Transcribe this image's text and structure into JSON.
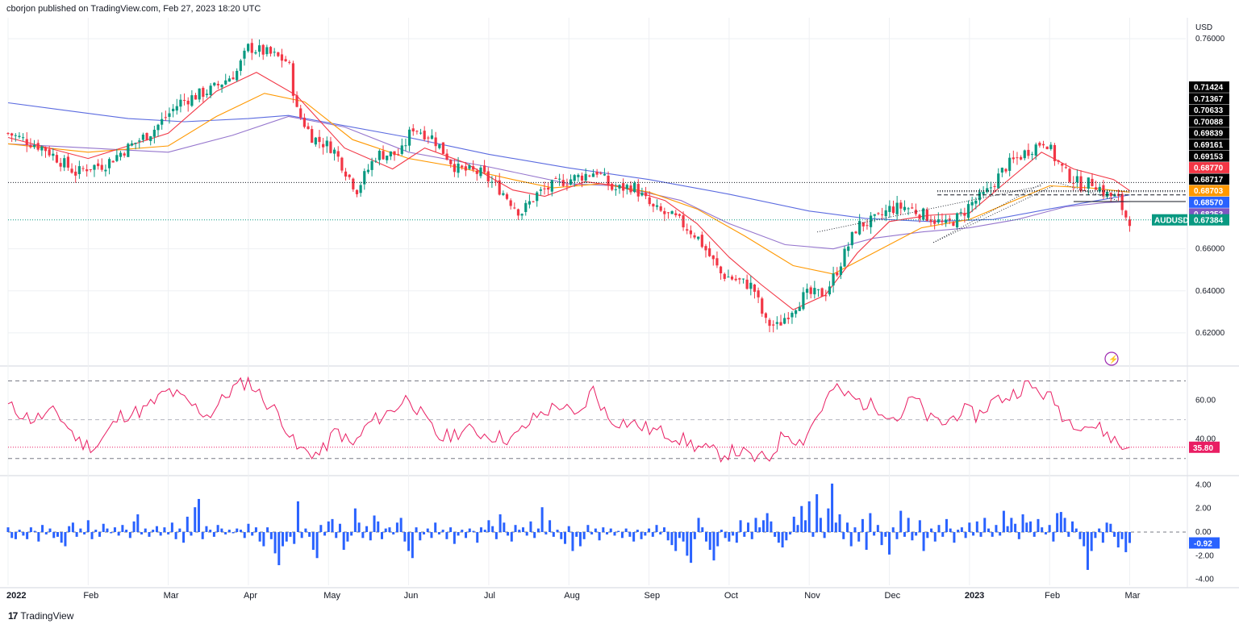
{
  "header": {
    "published": "cborjon published on TradingView.com, Feb 27, 2023 18:20 UTC"
  },
  "footer": {
    "brand": "TradingView",
    "logo_text": "17"
  },
  "colors": {
    "up": "#089981",
    "down": "#f23645",
    "ema_fast": "#f23645",
    "ema_mid": "#ff9800",
    "sma_100": "#9575cd",
    "sma_200": "#5b6be0",
    "rsi": "#e91e63",
    "hist": "#2962ff",
    "grid": "#eef0f3",
    "axis_text": "#131722"
  },
  "chart_data": [
    {
      "type": "candlestick",
      "symbol": "AUDUSD",
      "currency": "USD",
      "timeframe": "1D",
      "ylim": [
        0.605,
        0.77
      ],
      "y_ticks": [
        "0.76000",
        "0.66000",
        "0.64000",
        "0.62000"
      ],
      "x_labels": [
        "2022",
        "Feb",
        "Mar",
        "Apr",
        "May",
        "Jun",
        "Jul",
        "Aug",
        "Sep",
        "Oct",
        "Nov",
        "Dec",
        "2023",
        "Feb",
        "Mar"
      ],
      "x_label_months": [
        0,
        1,
        2,
        3,
        4,
        5,
        6,
        7,
        8,
        9,
        10,
        11,
        12,
        13,
        14
      ],
      "close_path": [
        [
          0,
          0.715
        ],
        [
          0.45,
          0.708
        ],
        [
          0.85,
          0.696
        ],
        [
          1.0,
          0.699
        ],
        [
          1.2,
          0.7
        ],
        [
          1.45,
          0.707
        ],
        [
          1.8,
          0.716
        ],
        [
          2.15,
          0.73
        ],
        [
          2.55,
          0.736
        ],
        [
          2.85,
          0.744
        ],
        [
          3.0,
          0.756
        ],
        [
          3.25,
          0.753
        ],
        [
          3.5,
          0.749
        ],
        [
          3.6,
          0.726
        ],
        [
          3.8,
          0.713
        ],
        [
          4.05,
          0.708
        ],
        [
          4.35,
          0.688
        ],
        [
          4.6,
          0.705
        ],
        [
          4.9,
          0.705
        ],
        [
          5.05,
          0.718
        ],
        [
          5.3,
          0.713
        ],
        [
          5.6,
          0.698
        ],
        [
          5.9,
          0.696
        ],
        [
          6.15,
          0.688
        ],
        [
          6.4,
          0.677
        ],
        [
          6.6,
          0.686
        ],
        [
          6.9,
          0.692
        ],
        [
          7.1,
          0.694
        ],
        [
          7.35,
          0.697
        ],
        [
          7.55,
          0.688
        ],
        [
          7.8,
          0.69
        ],
        [
          8.05,
          0.679
        ],
        [
          8.35,
          0.674
        ],
        [
          8.6,
          0.666
        ],
        [
          8.9,
          0.648
        ],
        [
          9.1,
          0.645
        ],
        [
          9.3,
          0.642
        ],
        [
          9.45,
          0.625
        ],
        [
          9.6,
          0.623
        ],
        [
          9.75,
          0.63
        ],
        [
          9.95,
          0.638
        ],
        [
          10.2,
          0.639
        ],
        [
          10.35,
          0.65
        ],
        [
          10.6,
          0.671
        ],
        [
          10.85,
          0.674
        ],
        [
          11.0,
          0.679
        ],
        [
          11.2,
          0.68
        ],
        [
          11.45,
          0.676
        ],
        [
          11.7,
          0.671
        ],
        [
          11.9,
          0.676
        ],
        [
          12.0,
          0.681
        ],
        [
          12.2,
          0.686
        ],
        [
          12.45,
          0.699
        ],
        [
          12.7,
          0.706
        ],
        [
          12.95,
          0.712
        ],
        [
          13.05,
          0.704
        ],
        [
          13.2,
          0.696
        ],
        [
          13.4,
          0.69
        ],
        [
          13.55,
          0.692
        ],
        [
          13.7,
          0.686
        ],
        [
          13.85,
          0.684
        ],
        [
          13.97,
          0.674
        ],
        [
          14.0,
          0.6738
        ]
      ],
      "ema_fast": [
        [
          0,
          0.713
        ],
        [
          1.0,
          0.703
        ],
        [
          2.0,
          0.715
        ],
        [
          2.6,
          0.735
        ],
        [
          3.1,
          0.744
        ],
        [
          3.6,
          0.733
        ],
        [
          4.2,
          0.708
        ],
        [
          4.8,
          0.698
        ],
        [
          5.2,
          0.708
        ],
        [
          5.7,
          0.701
        ],
        [
          6.3,
          0.688
        ],
        [
          6.7,
          0.685
        ],
        [
          7.2,
          0.692
        ],
        [
          7.6,
          0.69
        ],
        [
          8.2,
          0.683
        ],
        [
          8.6,
          0.672
        ],
        [
          9.0,
          0.656
        ],
        [
          9.4,
          0.643
        ],
        [
          9.8,
          0.631
        ],
        [
          10.2,
          0.638
        ],
        [
          10.6,
          0.658
        ],
        [
          11.0,
          0.673
        ],
        [
          11.5,
          0.676
        ],
        [
          12.0,
          0.677
        ],
        [
          12.4,
          0.69
        ],
        [
          12.9,
          0.706
        ],
        [
          13.3,
          0.698
        ],
        [
          13.8,
          0.693
        ],
        [
          14.0,
          0.6877
        ]
      ],
      "ema_mid": [
        [
          0,
          0.71
        ],
        [
          1.0,
          0.706
        ],
        [
          2.0,
          0.709
        ],
        [
          2.6,
          0.723
        ],
        [
          3.2,
          0.734
        ],
        [
          3.7,
          0.73
        ],
        [
          4.3,
          0.712
        ],
        [
          5.0,
          0.703
        ],
        [
          5.6,
          0.699
        ],
        [
          6.3,
          0.693
        ],
        [
          6.8,
          0.689
        ],
        [
          7.4,
          0.691
        ],
        [
          8.0,
          0.687
        ],
        [
          8.6,
          0.679
        ],
        [
          9.2,
          0.666
        ],
        [
          9.8,
          0.652
        ],
        [
          10.3,
          0.648
        ],
        [
          10.8,
          0.658
        ],
        [
          11.4,
          0.67
        ],
        [
          12.0,
          0.674
        ],
        [
          12.5,
          0.682
        ],
        [
          13.0,
          0.69
        ],
        [
          13.5,
          0.689
        ],
        [
          14.0,
          0.687
        ]
      ],
      "sma_100": [
        [
          0,
          0.71
        ],
        [
          1.0,
          0.708
        ],
        [
          2.0,
          0.706
        ],
        [
          2.8,
          0.714
        ],
        [
          3.5,
          0.723
        ],
        [
          4.2,
          0.718
        ],
        [
          5.0,
          0.706
        ],
        [
          6.0,
          0.699
        ],
        [
          7.0,
          0.691
        ],
        [
          7.6,
          0.69
        ],
        [
          8.4,
          0.683
        ],
        [
          9.0,
          0.672
        ],
        [
          9.7,
          0.662
        ],
        [
          10.3,
          0.66
        ],
        [
          10.8,
          0.665
        ],
        [
          11.4,
          0.668
        ],
        [
          12.0,
          0.67
        ],
        [
          12.6,
          0.674
        ],
        [
          13.2,
          0.68
        ],
        [
          13.7,
          0.682
        ],
        [
          14.0,
          0.6825
        ]
      ],
      "sma_200": [
        [
          0,
          0.7295
        ],
        [
          0.7,
          0.726
        ],
        [
          1.5,
          0.722
        ],
        [
          2.2,
          0.7205
        ],
        [
          3.0,
          0.722
        ],
        [
          3.5,
          0.7235
        ],
        [
          4.0,
          0.72
        ],
        [
          5.0,
          0.713
        ],
        [
          6.0,
          0.705
        ],
        [
          7.0,
          0.6985
        ],
        [
          8.0,
          0.693
        ],
        [
          9.0,
          0.686
        ],
        [
          10.0,
          0.678
        ],
        [
          10.7,
          0.6745
        ],
        [
          11.5,
          0.673
        ],
        [
          12.3,
          0.674
        ],
        [
          13.0,
          0.679
        ],
        [
          13.6,
          0.683
        ],
        [
          14.0,
          0.6857
        ]
      ],
      "horizontal_levels": [
        {
          "value": 0.6916,
          "style": "dotted"
        },
        {
          "value": 0.6877,
          "style": "dotted"
        },
        {
          "value": 0.6872,
          "style": "dotted"
        },
        {
          "value": 0.6857,
          "style": "dashed"
        },
        {
          "value": 0.6825,
          "style": "solid"
        },
        {
          "value": 0.6738,
          "style": "dotted-green"
        }
      ],
      "trendlines": [
        {
          "from": [
            11.55,
            0.663
          ],
          "to": [
            12.95,
            0.692
          ],
          "style": "dotted"
        },
        {
          "from": [
            11.55,
            0.663
          ],
          "to": [
            13.05,
            0.69
          ],
          "style": "dotted"
        },
        {
          "from": [
            13.05,
            0.692
          ],
          "to": [
            13.85,
            0.683
          ],
          "style": "dotted"
        },
        {
          "from": [
            10.1,
            0.668
          ],
          "to": [
            12.9,
            0.69
          ],
          "style": "dotted"
        }
      ],
      "price_labels": [
        {
          "value": "0.71424",
          "bg": "#000000"
        },
        {
          "value": "0.71367",
          "bg": "#000000"
        },
        {
          "value": "0.70633",
          "bg": "#000000"
        },
        {
          "value": "0.70088",
          "bg": "#000000"
        },
        {
          "value": "0.69839",
          "bg": "#000000"
        },
        {
          "value": "0.69161",
          "bg": "#000000"
        },
        {
          "value": "0.69153",
          "bg": "#000000"
        },
        {
          "value": "0.68770",
          "bg": "#f23645"
        },
        {
          "value": "0.68717",
          "bg": "#000000"
        },
        {
          "value": "0.68703",
          "bg": "#ff9800"
        },
        {
          "value": "0.68570",
          "bg": "#2962ff"
        },
        {
          "value": "0.68253",
          "bg": "#7e57c2"
        }
      ],
      "last_price": {
        "symbol": "AUDUSD",
        "value": "0.67384",
        "bg": "#089981"
      }
    },
    {
      "type": "line",
      "name": "RSI",
      "ylim": [
        22,
        76
      ],
      "levels": [
        70,
        50,
        30
      ],
      "y_ticks": [
        "60.00",
        "40.00"
      ],
      "current": "35.80",
      "points": [
        [
          0,
          57
        ],
        [
          0.3,
          50
        ],
        [
          0.6,
          54
        ],
        [
          0.9,
          38
        ],
        [
          1.1,
          36
        ],
        [
          1.4,
          52
        ],
        [
          1.7,
          55
        ],
        [
          2.0,
          65
        ],
        [
          2.2,
          60
        ],
        [
          2.5,
          52
        ],
        [
          2.8,
          66
        ],
        [
          3.0,
          70
        ],
        [
          3.2,
          60
        ],
        [
          3.4,
          52
        ],
        [
          3.6,
          35
        ],
        [
          3.9,
          32
        ],
        [
          4.1,
          45
        ],
        [
          4.3,
          36
        ],
        [
          4.5,
          48
        ],
        [
          4.8,
          55
        ],
        [
          5.0,
          62
        ],
        [
          5.2,
          50
        ],
        [
          5.4,
          40
        ],
        [
          5.7,
          45
        ],
        [
          6.0,
          42
        ],
        [
          6.3,
          40
        ],
        [
          6.6,
          52
        ],
        [
          6.9,
          58
        ],
        [
          7.1,
          50
        ],
        [
          7.3,
          66
        ],
        [
          7.5,
          50
        ],
        [
          7.8,
          48
        ],
        [
          8.0,
          45
        ],
        [
          8.3,
          42
        ],
        [
          8.6,
          36
        ],
        [
          8.9,
          32
        ],
        [
          9.1,
          34
        ],
        [
          9.3,
          30
        ],
        [
          9.5,
          30
        ],
        [
          9.7,
          44
        ],
        [
          9.9,
          38
        ],
        [
          10.1,
          52
        ],
        [
          10.3,
          66
        ],
        [
          10.5,
          62
        ],
        [
          10.7,
          58
        ],
        [
          10.9,
          56
        ],
        [
          11.1,
          50
        ],
        [
          11.3,
          62
        ],
        [
          11.5,
          50
        ],
        [
          11.7,
          48
        ],
        [
          11.9,
          55
        ],
        [
          12.1,
          52
        ],
        [
          12.3,
          60
        ],
        [
          12.5,
          62
        ],
        [
          12.7,
          68
        ],
        [
          12.9,
          64
        ],
        [
          13.05,
          60
        ],
        [
          13.2,
          50
        ],
        [
          13.4,
          48
        ],
        [
          13.6,
          46
        ],
        [
          13.8,
          40
        ],
        [
          13.92,
          35
        ],
        [
          14.0,
          35.8
        ]
      ]
    },
    {
      "type": "bar",
      "name": "Histogram",
      "ylim": [
        -4.5,
        4.5
      ],
      "y_ticks": [
        "4.00",
        "2.00",
        "0.00",
        "-2.00",
        "-4.00"
      ],
      "current": "-0.92",
      "values": [
        0.4,
        -0.5,
        -0.6,
        0.2,
        -0.3,
        -0.6,
        0.4,
        0.1,
        -0.8,
        0.6,
        -0.2,
        0.3,
        -0.5,
        -0.4,
        -0.9,
        -1.2,
        0.5,
        0.8,
        -0.4,
        0.3,
        -0.2,
        1.0,
        -0.6,
        0.2,
        -0.4,
        0.7,
        0.3,
        -0.1,
        0.4,
        -0.3,
        0.6,
        0.2,
        -0.5,
        0.9,
        1.5,
        -0.2,
        0.3,
        -0.4,
        0.2,
        0.5,
        -0.3,
        0.4,
        -0.2,
        0.8,
        -0.6,
        0.3,
        -0.9,
        1.3,
        -0.3,
        2.1,
        2.8,
        -0.6,
        0.5,
        0.2,
        -0.4,
        0.6,
        0.3,
        -0.2,
        0.2,
        -0.1,
        0.3,
        0.2,
        -0.5,
        0.7,
        -0.3,
        0.4,
        -0.8,
        -1.2,
        0.4,
        -0.6,
        -1.8,
        -2.8,
        -1.2,
        -0.8,
        -0.4,
        -1.0,
        2.6,
        -0.5,
        0.3,
        -0.4,
        -1.5,
        -2.2,
        0.6,
        -0.3,
        0.9,
        1.1,
        -0.5,
        0.7,
        -1.5,
        -0.8,
        -0.3,
        2.0,
        0.8,
        -0.5,
        0.5,
        -0.7,
        1.4,
        0.9,
        -0.6,
        0.3,
        0.4,
        -0.2,
        0.8,
        1.2,
        -0.8,
        -1.6,
        -2.2,
        0.4,
        -0.7,
        -0.2,
        0.3,
        -0.5,
        0.8,
        -0.2,
        0.2,
        -0.6,
        0.4,
        -1.0,
        -0.3,
        0.2,
        -0.5,
        0.3,
        0.1,
        -0.9,
        0.4,
        0.2,
        1.0,
        0.5,
        -0.6,
        1.5,
        0.8,
        -0.3,
        -0.8,
        0.6,
        0.2,
        0.4,
        -0.3,
        0.9,
        -0.5,
        0.3,
        2.1,
        -0.2,
        1.0,
        -0.4,
        0.2,
        -0.6,
        -1.0,
        0.5,
        -1.6,
        -0.4,
        -1.2,
        -0.6,
        0.6,
        -0.2,
        0.3,
        -0.7,
        0.4,
        -0.2,
        0.3,
        -0.3,
        0.1,
        -0.5,
        0.3,
        -0.4,
        -0.8,
        0.2,
        -0.6,
        -0.3,
        0.3,
        -0.4,
        0.6,
        -0.2,
        0.4,
        -0.7,
        -1.1,
        -1.6,
        -0.5,
        -0.8,
        -2.0,
        -2.6,
        -0.6,
        1.2,
        0.4,
        -0.8,
        -1.5,
        -2.4,
        -1.2,
        0.2,
        -0.5,
        -0.8,
        -0.3,
        -0.9,
        1.0,
        -0.4,
        0.8,
        -0.6,
        1.2,
        0.4,
        1.0,
        1.6,
        0.9,
        -0.4,
        -0.9,
        -1.3,
        -0.7,
        -0.2,
        1.3,
        0.6,
        2.2,
        1.0,
        2.6,
        -0.4,
        3.2,
        1.2,
        -0.5,
        2.0,
        4.1,
        0.8,
        1.5,
        -0.6,
        0.8,
        -1.2,
        0.4,
        -0.8,
        1.1,
        -1.5,
        1.6,
        -0.3,
        0.6,
        -1.1,
        -0.4,
        -1.9,
        0.4,
        -0.6,
        1.8,
        -0.4,
        1.2,
        -0.7,
        -0.3,
        1.0,
        -1.6,
        -0.5,
        0.3,
        -0.8,
        0.6,
        -0.4,
        1.1,
        0.3,
        -0.9,
        0.2,
        0.4,
        -0.5,
        0.8,
        -0.3,
        0.9,
        -0.4,
        1.2,
        0.3,
        -0.4,
        0.6,
        -0.3,
        1.8,
        0.5,
        1.2,
        0.7,
        -0.6,
        1.5,
        0.8,
        0.9,
        -0.4,
        1.1,
        0.4,
        -0.2,
        0.6,
        -0.8,
        1.6,
        1.7,
        1.2,
        -0.4,
        0.9,
        0.3,
        -0.6,
        -1.2,
        -3.2,
        -1.6,
        -0.5,
        0.3,
        -0.9,
        0.8,
        0.7,
        -0.4,
        -1.3,
        -0.6,
        -1.7,
        -0.92
      ]
    }
  ],
  "badges": {
    "lightning": "⚡"
  }
}
